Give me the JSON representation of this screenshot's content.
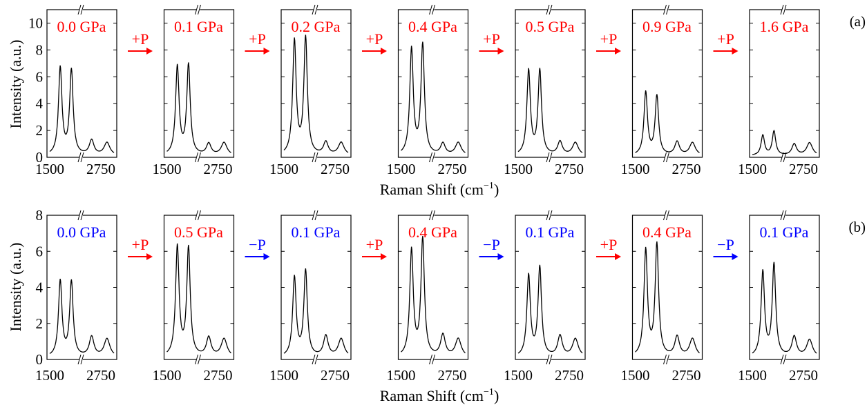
{
  "figure": {
    "xlabel": "Raman Shift (cm",
    "xlabel_sup": "−1",
    "xlabel_end": ")",
    "ylabel": "Intensity (a.u.)"
  },
  "colors": {
    "increase": "#ff0000",
    "decrease": "#0000ff",
    "line": "#000000"
  },
  "chart_data": [
    {
      "type": "line",
      "panel_label": "(a)",
      "ylabel": "Intensity (a.u.)",
      "xlabel": "Raman Shift (cm−1)",
      "ylim": [
        0,
        11
      ],
      "yticks": [
        0,
        2,
        4,
        6,
        8,
        10
      ],
      "xticks": [
        "1500",
        "2750"
      ],
      "x_axis_break": true,
      "grid": false,
      "steps": [
        "+P",
        "+P",
        "+P",
        "+P",
        "+P",
        "+P"
      ],
      "step_colors": [
        "red",
        "red",
        "red",
        "red",
        "red",
        "red"
      ],
      "subplots": [
        {
          "pressure": "0.0 GPa",
          "color": "red",
          "peak_heights": [
            6.5,
            6.3,
            1.1,
            0.95
          ]
        },
        {
          "pressure": "0.1 GPa",
          "color": "red",
          "peak_heights": [
            6.6,
            6.7,
            0.85,
            0.95
          ]
        },
        {
          "pressure": "0.2 GPa",
          "color": "red",
          "peak_heights": [
            8.5,
            8.7,
            0.95,
            0.95
          ]
        },
        {
          "pressure": "0.4 GPa",
          "color": "red",
          "peak_heights": [
            7.9,
            8.2,
            0.85,
            0.95
          ]
        },
        {
          "pressure": "0.5 GPa",
          "color": "red",
          "peak_heights": [
            6.3,
            6.3,
            1.0,
            0.95
          ]
        },
        {
          "pressure": "0.9 GPa",
          "color": "red",
          "peak_heights": [
            4.7,
            4.4,
            1.0,
            0.95
          ]
        },
        {
          "pressure": "1.6 GPa",
          "color": "red",
          "peak_heights": [
            1.5,
            1.8,
            0.85,
            0.95
          ]
        }
      ]
    },
    {
      "type": "line",
      "panel_label": "(b)",
      "ylabel": "Intensity (a.u.)",
      "xlabel": "Raman Shift (cm−1)",
      "ylim": [
        0,
        8
      ],
      "yticks": [
        0,
        2,
        4,
        6,
        8
      ],
      "xticks": [
        "1500",
        "2750"
      ],
      "x_axis_break": true,
      "grid": false,
      "steps": [
        "+P",
        "−P",
        "+P",
        "−P",
        "+P",
        "−P"
      ],
      "step_colors": [
        "red",
        "blue",
        "red",
        "blue",
        "red",
        "blue"
      ],
      "subplots": [
        {
          "pressure": "0.0 GPa",
          "color": "blue",
          "peak_heights": [
            4.2,
            4.15,
            1.1,
            1.0
          ]
        },
        {
          "pressure": "0.5 GPa",
          "color": "red",
          "peak_heights": [
            6.1,
            6.0,
            1.05,
            1.0
          ]
        },
        {
          "pressure": "0.1 GPa",
          "color": "blue",
          "peak_heights": [
            4.4,
            4.75,
            1.15,
            1.0
          ]
        },
        {
          "pressure": "0.4 GPa",
          "color": "red",
          "peak_heights": [
            5.9,
            6.5,
            1.2,
            1.0
          ]
        },
        {
          "pressure": "0.1 GPa",
          "color": "blue",
          "peak_heights": [
            4.5,
            4.95,
            1.15,
            1.0
          ]
        },
        {
          "pressure": "0.4 GPa",
          "color": "red",
          "peak_heights": [
            5.9,
            6.2,
            1.1,
            1.0
          ]
        },
        {
          "pressure": "0.1 GPa",
          "color": "blue",
          "peak_heights": [
            4.7,
            5.1,
            1.1,
            0.95
          ]
        }
      ]
    }
  ]
}
